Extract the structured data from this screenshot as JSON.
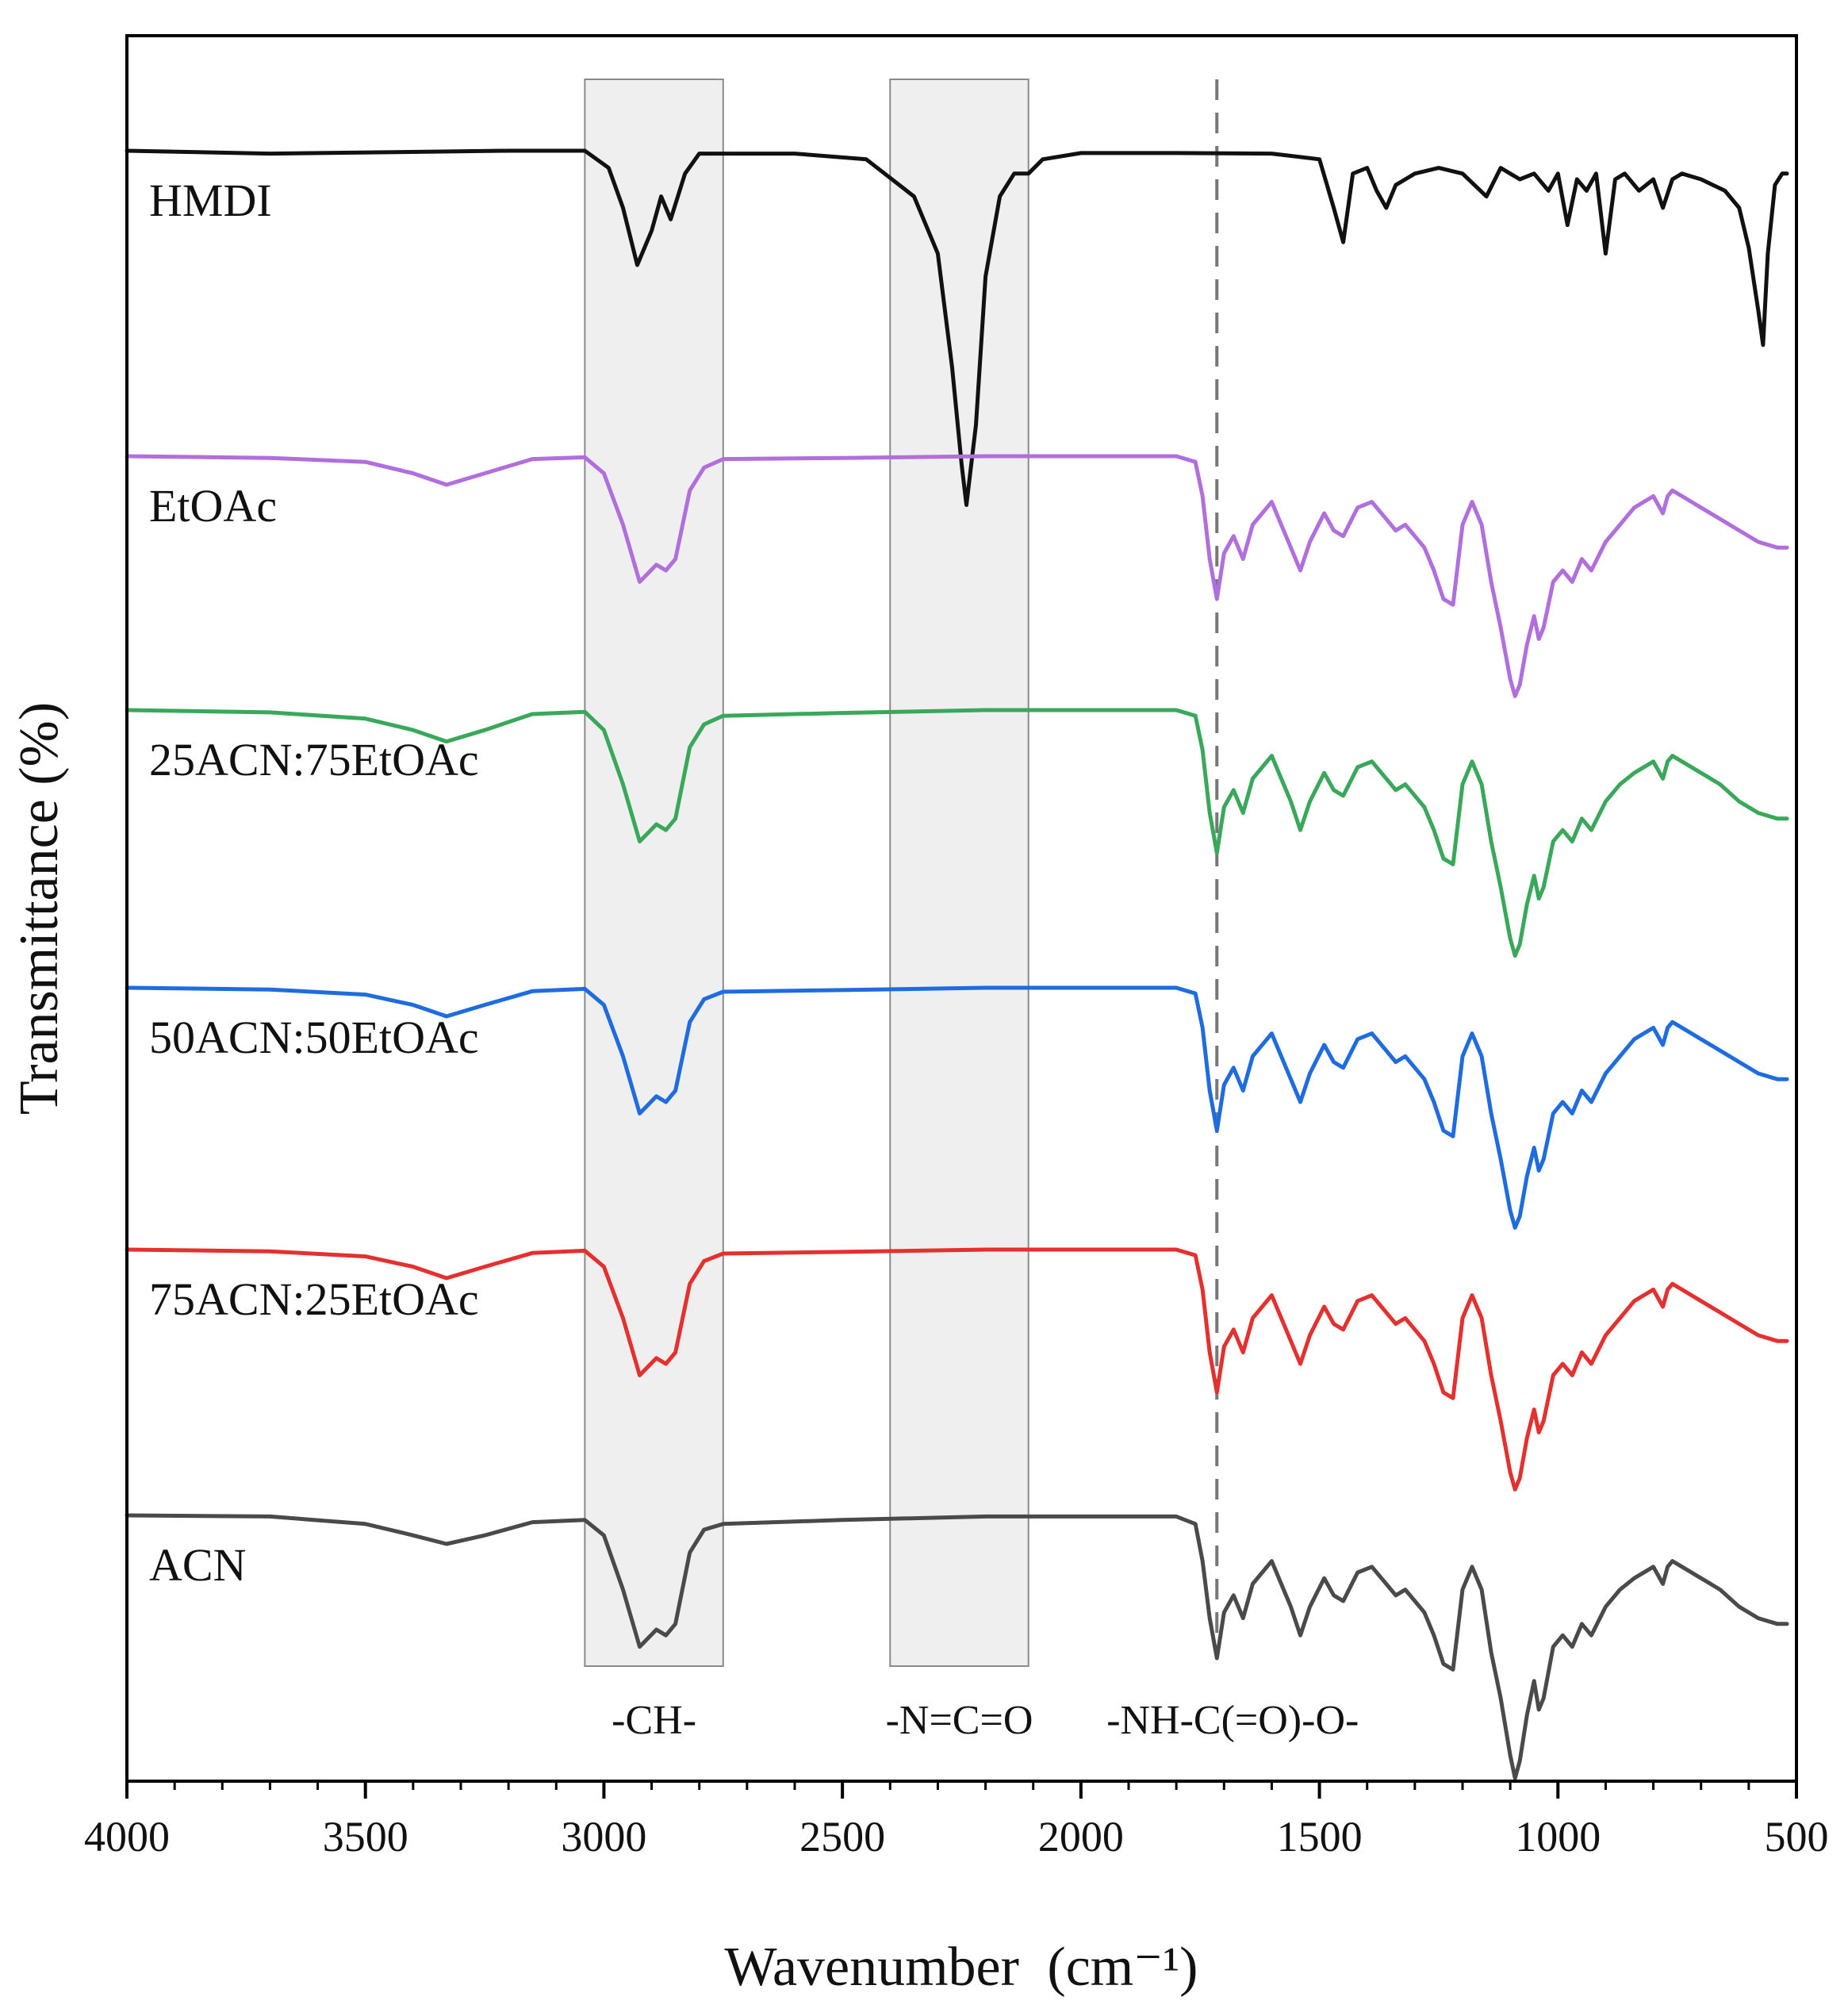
{
  "chart_data": {
    "type": "line",
    "xlabel": "Wavenumber",
    "xlabel_unit": "(cm⁻¹)",
    "ylabel": "Transmittance (%)",
    "xlim": [
      4000,
      500
    ],
    "x_reversed": true,
    "x_ticks": [
      4000,
      3500,
      3000,
      2500,
      2000,
      1500,
      1000,
      500
    ],
    "y_ticks_shown": false,
    "grid": false,
    "legend": "labels placed on the left of each offset trace",
    "highlight_bands": [
      {
        "label": "-CH-",
        "x_from": 3040,
        "x_to": 2750,
        "color": "#efefef"
      },
      {
        "label": "-N=C=O",
        "x_from": 2400,
        "x_to": 2110,
        "color": "#efefef"
      }
    ],
    "reference_lines": [
      {
        "label": "-NH-C(=O)-O-",
        "x": 1715,
        "style": "dashed",
        "color": "#777777"
      }
    ],
    "series": [
      {
        "name": "HMDI",
        "color": "#111111",
        "x": [
          4000,
          3700,
          3200,
          3040,
          2990,
          2960,
          2930,
          2900,
          2880,
          2860,
          2830,
          2800,
          2600,
          2450,
          2350,
          2300,
          2270,
          2250,
          2240,
          2220,
          2200,
          2170,
          2140,
          2110,
          2080,
          2000,
          1800,
          1600,
          1500,
          1470,
          1450,
          1430,
          1400,
          1380,
          1360,
          1340,
          1300,
          1250,
          1200,
          1150,
          1120,
          1080,
          1050,
          1020,
          1000,
          980,
          960,
          940,
          920,
          900,
          880,
          860,
          830,
          800,
          780,
          760,
          740,
          700,
          650,
          620,
          600,
          580,
          570,
          560,
          545,
          530,
          520
        ],
        "y": [
          100,
          99.5,
          100,
          100,
          97,
          90,
          80,
          86,
          92,
          88,
          96,
          99.5,
          99.5,
          98.5,
          92,
          82,
          62,
          45,
          38,
          52,
          78,
          92,
          96,
          96,
          98.5,
          99.6,
          99.6,
          99.5,
          98.5,
          90,
          84,
          96,
          97,
          93,
          90,
          94,
          96,
          97,
          96,
          92,
          97,
          95,
          96,
          93,
          96,
          87,
          95,
          93,
          96,
          82,
          95,
          96,
          93,
          95,
          90,
          95,
          96,
          95,
          93,
          90,
          83,
          72,
          66,
          82,
          94,
          96,
          96
        ]
      },
      {
        "name": "EtOAc",
        "color": "#b06fdd",
        "x": [
          4000,
          3700,
          3500,
          3400,
          3330,
          3250,
          3150,
          3040,
          3000,
          2960,
          2925,
          2890,
          2870,
          2850,
          2820,
          2790,
          2750,
          2500,
          2200,
          2000,
          1800,
          1760,
          1745,
          1730,
          1715,
          1700,
          1680,
          1660,
          1640,
          1600,
          1560,
          1540,
          1520,
          1490,
          1470,
          1450,
          1420,
          1390,
          1360,
          1340,
          1320,
          1300,
          1280,
          1260,
          1240,
          1220,
          1200,
          1180,
          1160,
          1140,
          1120,
          1100,
          1090,
          1080,
          1065,
          1050,
          1040,
          1030,
          1010,
          990,
          970,
          950,
          930,
          900,
          870,
          840,
          800,
          780,
          770,
          760,
          740,
          700,
          660,
          620,
          580,
          540,
          520
        ],
        "y": [
          100,
          99.7,
          99,
          97,
          95,
          97,
          99.5,
          99.8,
          97,
          88,
          78,
          81,
          80,
          82,
          94,
          98,
          99.5,
          99.7,
          100,
          100,
          100,
          99,
          93,
          82,
          75,
          83,
          86,
          82,
          88,
          92,
          84,
          80,
          85,
          90,
          87,
          86,
          91,
          92,
          89,
          87,
          88,
          86,
          84,
          80,
          75,
          74,
          88,
          92,
          88,
          78,
          70,
          61,
          58,
          60,
          67,
          72,
          68,
          70,
          78,
          80,
          78,
          82,
          80,
          85,
          88,
          91,
          93,
          90,
          93,
          94,
          93,
          91,
          89,
          87,
          85,
          84,
          84
        ]
      },
      {
        "name": "25ACN:75EtOAc",
        "color": "#39a85a",
        "x": [
          4000,
          3700,
          3500,
          3400,
          3330,
          3250,
          3150,
          3040,
          3000,
          2960,
          2925,
          2890,
          2870,
          2850,
          2820,
          2790,
          2750,
          2500,
          2200,
          2000,
          1800,
          1760,
          1745,
          1730,
          1715,
          1700,
          1680,
          1660,
          1640,
          1600,
          1560,
          1540,
          1520,
          1490,
          1470,
          1450,
          1420,
          1390,
          1360,
          1340,
          1320,
          1300,
          1280,
          1260,
          1240,
          1220,
          1200,
          1180,
          1160,
          1140,
          1120,
          1100,
          1090,
          1080,
          1065,
          1050,
          1040,
          1030,
          1010,
          990,
          970,
          950,
          930,
          900,
          870,
          840,
          800,
          780,
          770,
          760,
          740,
          700,
          660,
          620,
          580,
          540,
          520
        ],
        "y": [
          100,
          99.6,
          98.5,
          96.5,
          94.5,
          96.5,
          99.3,
          99.7,
          96.5,
          87,
          77,
          80,
          79,
          81,
          93.5,
          97.5,
          99,
          99.5,
          100,
          100,
          100,
          99,
          93,
          82,
          75,
          83,
          86,
          82,
          88,
          92,
          84,
          79,
          84,
          89,
          86,
          85,
          90,
          91,
          88,
          86,
          87,
          85,
          83,
          79,
          74,
          73,
          87,
          91,
          87,
          77,
          69,
          60,
          57,
          59,
          66,
          71,
          67,
          69,
          77,
          79,
          77,
          81,
          79,
          84,
          87,
          89,
          91,
          88,
          91,
          92,
          91,
          89,
          87,
          84,
          82,
          81,
          81
        ]
      },
      {
        "name": "50ACN:50EtOAc",
        "color": "#1f6be0",
        "x": [
          4000,
          3700,
          3500,
          3400,
          3330,
          3250,
          3150,
          3040,
          3000,
          2960,
          2925,
          2890,
          2870,
          2850,
          2820,
          2790,
          2750,
          2500,
          2200,
          2000,
          1800,
          1760,
          1745,
          1730,
          1715,
          1700,
          1680,
          1660,
          1640,
          1600,
          1560,
          1540,
          1520,
          1490,
          1470,
          1450,
          1420,
          1390,
          1360,
          1340,
          1320,
          1300,
          1280,
          1260,
          1240,
          1220,
          1200,
          1180,
          1160,
          1140,
          1120,
          1100,
          1090,
          1080,
          1065,
          1050,
          1040,
          1030,
          1010,
          990,
          970,
          950,
          930,
          900,
          870,
          840,
          800,
          780,
          770,
          760,
          740,
          700,
          660,
          620,
          580,
          540,
          520
        ],
        "y": [
          100,
          99.7,
          98.8,
          97,
          95,
          97,
          99.4,
          99.8,
          97,
          88,
          78,
          81,
          80,
          82,
          94,
          98,
          99.3,
          99.6,
          100,
          100,
          100,
          99,
          93,
          82,
          75,
          83,
          86,
          82,
          88,
          92,
          84,
          80,
          85,
          90,
          87,
          86,
          91,
          92,
          89,
          87,
          88,
          86,
          84,
          80,
          75,
          74,
          88,
          92,
          88,
          78,
          70,
          61,
          58,
          60,
          67,
          72,
          68,
          70,
          78,
          80,
          78,
          82,
          80,
          85,
          88,
          91,
          93,
          90,
          93,
          94,
          93,
          91,
          89,
          87,
          85,
          84,
          84
        ]
      },
      {
        "name": "75ACN:25EtOAc",
        "color": "#e53030",
        "x": [
          4000,
          3700,
          3500,
          3400,
          3330,
          3250,
          3150,
          3040,
          3000,
          2960,
          2925,
          2890,
          2870,
          2850,
          2820,
          2790,
          2750,
          2500,
          2200,
          2000,
          1800,
          1760,
          1745,
          1730,
          1715,
          1700,
          1680,
          1660,
          1640,
          1600,
          1560,
          1540,
          1520,
          1490,
          1470,
          1450,
          1420,
          1390,
          1360,
          1340,
          1320,
          1300,
          1280,
          1260,
          1240,
          1220,
          1200,
          1180,
          1160,
          1140,
          1120,
          1100,
          1090,
          1080,
          1065,
          1050,
          1040,
          1030,
          1010,
          990,
          970,
          950,
          930,
          900,
          870,
          840,
          800,
          780,
          770,
          760,
          740,
          700,
          660,
          620,
          580,
          540,
          520
        ],
        "y": [
          100,
          99.7,
          98.8,
          97,
          95,
          97,
          99.4,
          99.8,
          97,
          88,
          78,
          81,
          80,
          82,
          94,
          98,
          99.3,
          99.6,
          100,
          100,
          100,
          99,
          93,
          82,
          75,
          83,
          86,
          82,
          88,
          92,
          84,
          80,
          85,
          90,
          87,
          86,
          91,
          92,
          89,
          87,
          88,
          86,
          84,
          80,
          75,
          74,
          88,
          92,
          88,
          78,
          70,
          61,
          58,
          60,
          67,
          72,
          68,
          70,
          78,
          80,
          78,
          82,
          80,
          85,
          88,
          91,
          93,
          90,
          93,
          94,
          93,
          91,
          89,
          87,
          85,
          84,
          84
        ]
      },
      {
        "name": "ACN",
        "color": "#4a4a4a",
        "x": [
          4000,
          3700,
          3500,
          3400,
          3330,
          3250,
          3150,
          3040,
          3000,
          2960,
          2925,
          2890,
          2870,
          2850,
          2820,
          2790,
          2750,
          2500,
          2200,
          2000,
          1800,
          1760,
          1745,
          1730,
          1715,
          1700,
          1680,
          1660,
          1640,
          1600,
          1560,
          1540,
          1520,
          1490,
          1470,
          1450,
          1420,
          1390,
          1360,
          1340,
          1320,
          1300,
          1280,
          1260,
          1240,
          1220,
          1200,
          1180,
          1160,
          1140,
          1120,
          1100,
          1090,
          1080,
          1065,
          1050,
          1040,
          1030,
          1010,
          990,
          970,
          950,
          930,
          900,
          870,
          840,
          800,
          780,
          770,
          760,
          740,
          700,
          660,
          620,
          580,
          540,
          520
        ],
        "y": [
          100,
          99.8,
          98.5,
          96.5,
          95,
          96.5,
          98.8,
          99.2,
          96.5,
          87,
          77,
          80,
          79,
          81,
          93.5,
          97.5,
          98.5,
          99.2,
          99.8,
          99.8,
          99.8,
          98.5,
          92,
          82,
          75,
          83,
          86,
          82,
          88,
          92,
          84,
          79,
          84,
          89,
          86,
          85,
          90,
          91,
          88,
          86,
          87,
          85,
          83,
          79,
          74,
          73,
          87,
          91,
          87,
          76,
          68,
          58,
          54,
          57,
          65,
          71,
          66,
          68,
          77,
          79,
          77,
          81,
          79,
          84,
          87,
          89,
          91,
          88,
          91,
          92,
          91,
          89,
          87,
          84,
          82,
          81,
          81
        ]
      }
    ]
  }
}
